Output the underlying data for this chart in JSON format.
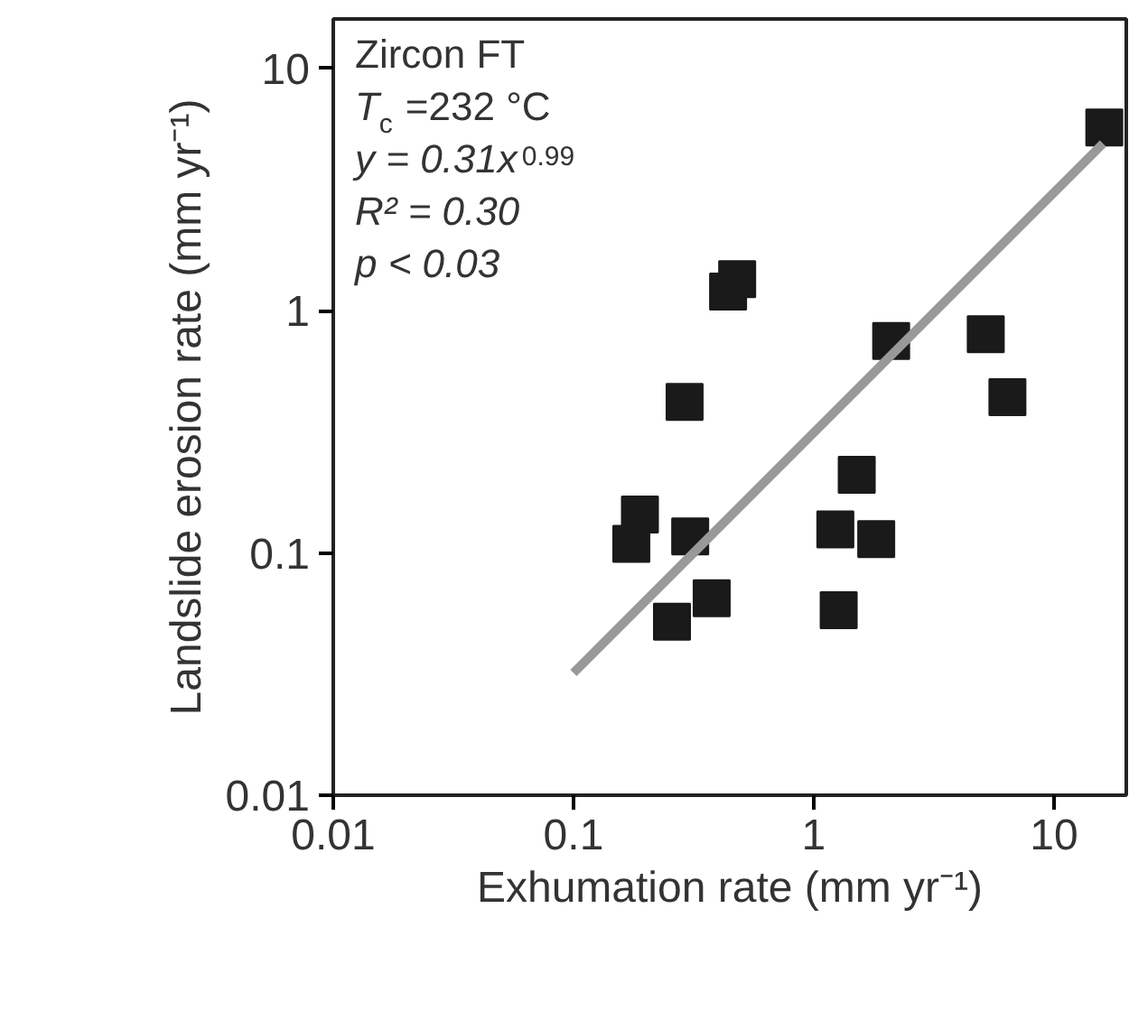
{
  "chart_data": {
    "type": "scatter",
    "xlabel": "Exhumation rate (mm yr⁻¹)",
    "ylabel": "Landslide erosion rate (mm yr⁻¹)",
    "log": "xy",
    "grid": false,
    "legend": false,
    "xlim": [
      0.01,
      20
    ],
    "ylim": [
      0.01,
      16
    ],
    "xticks": [
      0.01,
      0.1,
      1,
      10
    ],
    "yticks": [
      0.01,
      0.1,
      1,
      10
    ],
    "annotations": [
      "Zircon FT",
      "T$_{c}$ =232 °C",
      "y = 0.31x$^{0.99}$",
      "R² = 0.30",
      "p < 0.03"
    ],
    "series": [
      {
        "color": "#1a1a1a",
        "marker": "square",
        "x": [
          16.2,
          0.44,
          0.48,
          2.1,
          5.2,
          6.4,
          0.29,
          1.51,
          0.189,
          0.174,
          0.306,
          1.23,
          1.82,
          0.376,
          0.257,
          1.27
        ],
        "values": [
          5.7,
          1.2,
          1.35,
          0.75,
          0.8,
          0.44,
          0.42,
          0.21,
          0.144,
          0.109,
          0.117,
          0.125,
          0.114,
          0.065,
          0.052,
          0.058
        ]
      },
      {
        "type": "line",
        "marker": "none",
        "color": "#999999",
        "x": [
          0.1,
          16
        ],
        "values": [
          0.032,
          4.9
        ]
      }
    ]
  }
}
